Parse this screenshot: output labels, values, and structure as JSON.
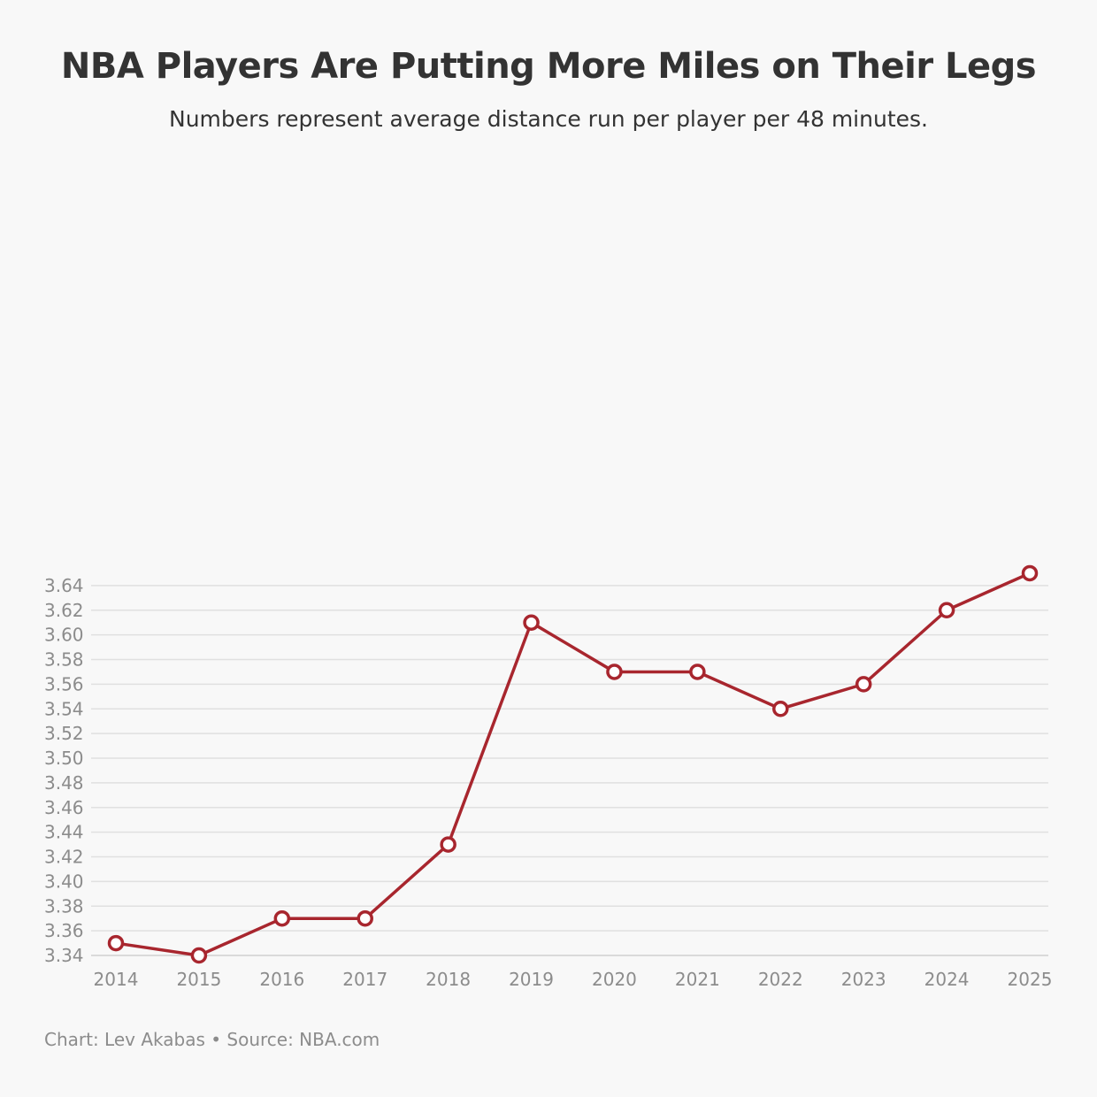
{
  "chart_data": {
    "type": "line",
    "title": "NBA Players Are Putting More Miles on Their Legs",
    "subtitle": "Numbers represent average distance run per player per 48 minutes.",
    "footer": "Chart: Lev Akabas • Source: NBA.com",
    "x": [
      "2014",
      "2015",
      "2016",
      "2017",
      "2018",
      "2019",
      "2020",
      "2021",
      "2022",
      "2023",
      "2024",
      "2025"
    ],
    "series": [
      {
        "values": [
          3.35,
          3.34,
          3.37,
          3.37,
          3.43,
          3.61,
          3.57,
          3.57,
          3.54,
          3.56,
          3.62,
          3.65
        ]
      }
    ],
    "y_ticks": [
      "3.34",
      "3.36",
      "3.38",
      "3.40",
      "3.42",
      "3.44",
      "3.46",
      "3.48",
      "3.50",
      "3.52",
      "3.54",
      "3.56",
      "3.58",
      "3.60",
      "3.62",
      "3.64"
    ],
    "ylim": [
      3.34,
      3.65
    ],
    "grid": true,
    "colors": {
      "line": "#a8262e",
      "marker_fill": "#ffffff",
      "grid": "#e0e0e0",
      "axis_text": "#8c8c8c",
      "title": "#333333"
    }
  }
}
